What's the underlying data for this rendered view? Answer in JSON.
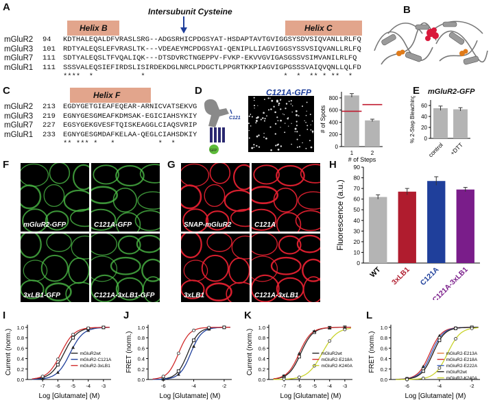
{
  "panels": [
    "A",
    "B",
    "C",
    "D",
    "E",
    "F",
    "G",
    "H",
    "I",
    "J",
    "K",
    "L"
  ],
  "panelA": {
    "annotation": "Intersubunit Cysteine",
    "helixB": "Helix B",
    "helixC": "Helix C",
    "rows": [
      {
        "gene": "mGluR2",
        "num": "94",
        "seq": "KDTHALEQALDFVRASLSRG--ADGSRHICPDGSYAT-HSDAPTAVTGVIGGSYSDVSIQVANLLRLFQ"
      },
      {
        "gene": "mGluR3",
        "num": "101",
        "seq": "RDTYALEQSLEFVRASLTK---VDEAEYMCPDGSYAI-QENIPLLIAGVIGGSYSSVSIQVANLLRLFQ"
      },
      {
        "gene": "mGluR7",
        "num": "111",
        "seq": "SDTYALEQSLTFVQALIQK---DTSDVRCTNGEPPV-FVKP-EKVVGVIGASGSSVSIMVANILRLFQ"
      },
      {
        "gene": "mGluR1",
        "num": "111",
        "seq": "SSSVALEQSIEFIRDSLISIRDEKDGLNRCLPDGCTLPPGRTKKPIAGVIGPGSSSVAIQVQNLLQLFD"
      }
    ],
    "stars": "****  *           *                                *  *  ** * **  *"
  },
  "panelC": {
    "helixF": "Helix F",
    "rows": [
      {
        "gene": "mGluR2",
        "num": "213",
        "seq": "EGDYGETGIEAFEQEAR-ARNICVATSEKVG"
      },
      {
        "gene": "mGluR3",
        "num": "219",
        "seq": "EGNYGESGMEAFKDMSAK-EGICIAHSYKIY"
      },
      {
        "gene": "mGluR7",
        "num": "227",
        "seq": "EGSYGEKGVESFTQISKEAGGLCIAQSVRIP"
      },
      {
        "gene": "mGluR1",
        "num": "233",
        "seq": "EGNYGESGMDAFKELAA-QEGLCIAHSDKIY"
      }
    ],
    "stars": "** *** *   *          *  *"
  },
  "panelD": {
    "title": "C121A-GFP",
    "c121": "C121",
    "gfp": "GFP",
    "chart_data": {
      "type": "bar",
      "categories": [
        "1",
        "2"
      ],
      "values": [
        840,
        430
      ],
      "errors": [
        30,
        20
      ],
      "ref_lines": [
        580,
        690
      ],
      "ylim": [
        0,
        900
      ],
      "yticks": [
        0,
        200,
        400,
        600,
        800
      ],
      "xlabel": "# of Steps",
      "ylabel": "# of Spots"
    }
  },
  "panelE": {
    "title": "mGluR2-GFP",
    "chart_data": {
      "type": "bar",
      "categories": [
        "control",
        "+DTT"
      ],
      "values": [
        55,
        53
      ],
      "errors": [
        4,
        3
      ],
      "ylim": [
        0,
        70
      ],
      "yticks": [
        0,
        20,
        40,
        60
      ],
      "ylabel": "% 2-Step Bleaching"
    }
  },
  "panelF": {
    "labels": [
      "mGluR2-GFP",
      "C121A-GFP",
      "3xLB1-GFP",
      "C121A-3xLB1-GFP"
    ]
  },
  "panelG": {
    "labels": [
      "SNAP-mGluR2",
      "C121A",
      "3xLB1",
      "C121A-3xLB1"
    ]
  },
  "panelH": {
    "chart_data": {
      "type": "bar",
      "categories": [
        "WT",
        "3xLB1",
        "C121A",
        "C121A-3xLB1"
      ],
      "values": [
        62,
        67,
        77,
        69
      ],
      "errors": [
        2,
        3,
        4,
        2
      ],
      "colors": [
        "#b4b4b4",
        "#b01c2e",
        "#1f3f9b",
        "#7a1d8a"
      ],
      "ylim": [
        0,
        90
      ],
      "yticks": [
        0,
        10,
        20,
        30,
        40,
        50,
        60,
        70,
        80,
        90
      ],
      "ylabel": "Fluorescence (a.u.)"
    }
  },
  "panelI": {
    "chart_data": {
      "type": "line",
      "xlabel": "Log [Glutamate] (M)",
      "ylabel": "Current (norm.)",
      "xlim": [
        -8,
        -2.5
      ],
      "xticks": [
        -7,
        -6,
        -5,
        -4,
        -3
      ],
      "ylim": [
        0,
        1.05
      ],
      "yticks": [
        0.0,
        0.2,
        0.4,
        0.6,
        0.8,
        1.0
      ],
      "series": [
        {
          "name": "mGluR2wt",
          "color": "#222222",
          "ec50": -5.6,
          "hill": 1.0
        },
        {
          "name": "mGluR2-C121A",
          "color": "#1f3f9b",
          "ec50": -5.2,
          "hill": 1.0
        },
        {
          "name": "mGluR2-3xLB1",
          "color": "#d02a2a",
          "ec50": -5.8,
          "hill": 1.0
        }
      ],
      "points_x": [
        -7,
        -6,
        -5,
        -4,
        -3
      ]
    }
  },
  "panelJ": {
    "chart_data": {
      "type": "line",
      "xlabel": "Log [Glutamate] (M)",
      "ylabel": "FRET (norm.)",
      "xlim": [
        -7,
        -1.5
      ],
      "xticks": [
        -6,
        -4,
        -2
      ],
      "ylim": [
        0,
        1.05
      ],
      "yticks": [
        0.0,
        0.2,
        0.4,
        0.6,
        0.8,
        1.0
      ],
      "series": [
        {
          "name": "wt",
          "color": "#222222",
          "ec50": -4.4,
          "hill": 1.2
        },
        {
          "name": "C121A",
          "color": "#1f3f9b",
          "ec50": -4.2,
          "hill": 1.2
        },
        {
          "name": "3xLB1",
          "color": "#d02a2a",
          "ec50": -5.0,
          "hill": 1.2
        }
      ],
      "points_x": [
        -6,
        -5,
        -4,
        -3,
        -2
      ]
    }
  },
  "panelK": {
    "chart_data": {
      "type": "line",
      "xlabel": "Log [Glutamate] (M)",
      "ylabel": "Current (norm.)",
      "xlim": [
        -8,
        -2.5
      ],
      "xticks": [
        -7,
        -6,
        -5,
        -4,
        -3
      ],
      "ylim": [
        0,
        1.05
      ],
      "yticks": [
        0.0,
        0.2,
        0.4,
        0.6,
        0.8,
        1.0
      ],
      "series": [
        {
          "name": "mGluR2wt",
          "color": "#222222",
          "ec50": -5.9,
          "hill": 1.1
        },
        {
          "name": "mGluR2-E218A",
          "color": "#d02a2a",
          "ec50": -6.0,
          "hill": 1.1
        },
        {
          "name": "mGluR2-K240A",
          "color": "#c9d32a",
          "ec50": -4.5,
          "hill": 0.9
        }
      ],
      "points_x": [
        -7,
        -6,
        -5,
        -4,
        -3
      ]
    }
  },
  "panelL": {
    "chart_data": {
      "type": "line",
      "xlabel": "Log [Glutamate] (M)",
      "ylabel": "FRET (norm.)",
      "xlim": [
        -7,
        -1.5
      ],
      "xticks": [
        -6,
        -4,
        -2
      ],
      "ylim": [
        0,
        1.05
      ],
      "yticks": [
        0.0,
        0.2,
        0.4,
        0.6,
        0.8,
        1.0
      ],
      "series": [
        {
          "name": "mGluR2-E213A",
          "color": "#e07b39",
          "ec50": -4.4,
          "hill": 1.2
        },
        {
          "name": "mGluR2-E218A",
          "color": "#d02a2a",
          "ec50": -4.6,
          "hill": 1.2
        },
        {
          "name": "mGluR2-E222A",
          "color": "#3b5fbf",
          "ec50": -4.5,
          "hill": 1.2
        },
        {
          "name": "mGluR2wt",
          "color": "#222222",
          "ec50": -4.4,
          "hill": 1.2
        },
        {
          "name": "mGluR2-K240A",
          "color": "#c9d32a",
          "ec50": -3.5,
          "hill": 1.1
        }
      ],
      "points_x": [
        -6,
        -5,
        -4,
        -3,
        -2
      ]
    }
  }
}
